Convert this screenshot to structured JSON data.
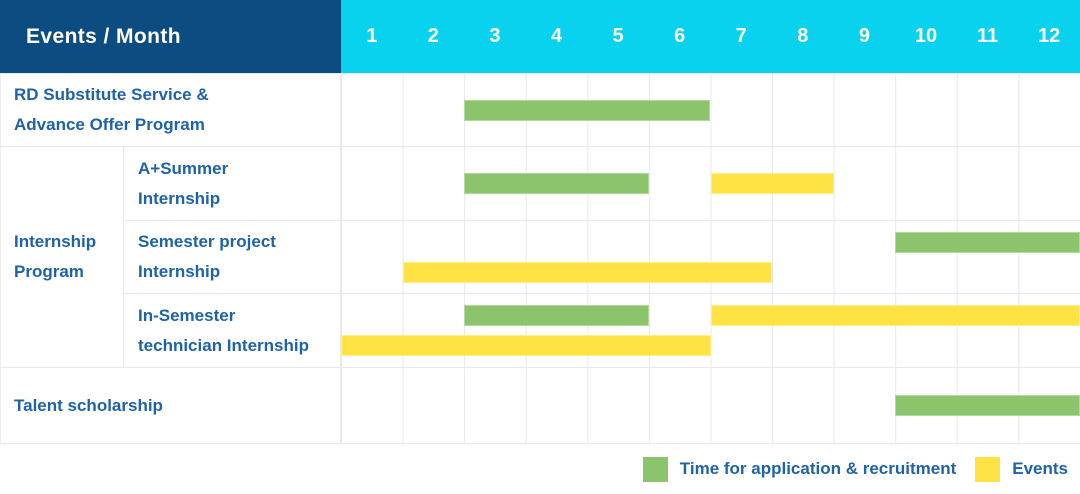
{
  "header": {
    "title": "Events / Month",
    "months": [
      "1",
      "2",
      "3",
      "4",
      "5",
      "6",
      "7",
      "8",
      "9",
      "10",
      "11",
      "12"
    ]
  },
  "rows": {
    "rd": {
      "lines": [
        "RD Substitute Service &",
        "Advance Offer Program"
      ]
    },
    "group": {
      "lines": [
        "Internship",
        "Program"
      ]
    },
    "a_summer": {
      "lines": [
        "A+Summer",
        "Internship"
      ]
    },
    "semester_project": {
      "lines": [
        "Semester project",
        "Internship"
      ]
    },
    "in_semester": {
      "lines": [
        "In-Semester",
        "technician Internship"
      ]
    },
    "talent": {
      "lines": [
        "Talent scholarship"
      ]
    }
  },
  "legend": {
    "items": [
      {
        "label": "Time for application & recruitment",
        "type": "recruitment"
      },
      {
        "label": "Events",
        "type": "event"
      }
    ]
  },
  "colors": {
    "header_bg": "#0d4c80",
    "months_bg": "#09d2ee",
    "recruitment": "#8bc46b",
    "event": "#ffe345",
    "label_text": "#1e62a8",
    "grid_line": "#e9e9e9"
  },
  "chart_data": {
    "type": "gantt",
    "x_label": "Month",
    "x_ticks": [
      "1",
      "2",
      "3",
      "4",
      "5",
      "6",
      "7",
      "8",
      "9",
      "10",
      "11",
      "12"
    ],
    "x_range": [
      1,
      12
    ],
    "legend_position": "bottom-right",
    "grid": true,
    "bar_types": {
      "recruitment": "Time for application & recruitment",
      "event": "Events"
    },
    "rows": [
      {
        "label": "RD Substitute Service & Advance Offer Program",
        "group": null,
        "lanes": [
          [
            {
              "start": 3,
              "end": 6,
              "type": "recruitment"
            }
          ]
        ]
      },
      {
        "label": "A+Summer Internship",
        "group": "Internship Program",
        "lanes": [
          [
            {
              "start": 3,
              "end": 5,
              "type": "recruitment"
            },
            {
              "start": 7,
              "end": 8,
              "type": "event"
            }
          ]
        ]
      },
      {
        "label": "Semester project Internship",
        "group": "Internship Program",
        "lanes": [
          [
            {
              "start": 10,
              "end": 12,
              "type": "recruitment"
            }
          ],
          [
            {
              "start": 2,
              "end": 7,
              "type": "event"
            }
          ]
        ]
      },
      {
        "label": "In-Semester technician Internship",
        "group": "Internship Program",
        "lanes": [
          [
            {
              "start": 3,
              "end": 5,
              "type": "recruitment"
            },
            {
              "start": 7,
              "end": 12,
              "type": "event"
            }
          ],
          [
            {
              "start": 1,
              "end": 6,
              "type": "event"
            }
          ]
        ]
      },
      {
        "label": "Talent scholarship",
        "group": null,
        "lanes": [
          [
            {
              "start": 10,
              "end": 12,
              "type": "recruitment"
            }
          ]
        ]
      }
    ]
  }
}
